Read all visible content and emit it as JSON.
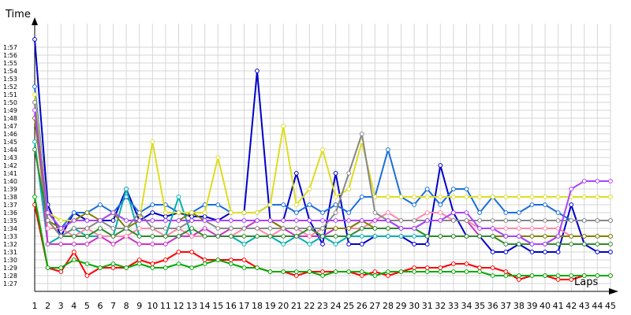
{
  "chart_data": {
    "type": "line",
    "title": "",
    "xlabel": "Laps",
    "ylabel": "Time",
    "x_ticks": [
      "1",
      "2",
      "3",
      "4",
      "5",
      "6",
      "7",
      "8",
      "9",
      "10",
      "11",
      "12",
      "13",
      "14",
      "15",
      "16",
      "17",
      "18",
      "19",
      "20",
      "21",
      "22",
      "23",
      "24",
      "25",
      "26",
      "27",
      "28",
      "29",
      "30",
      "31",
      "32",
      "33",
      "34",
      "35",
      "36",
      "37",
      "38",
      "39",
      "40",
      "41",
      "42",
      "43",
      "44",
      "45"
    ],
    "y_ticks": [
      "1:27",
      "1:28",
      "1:29",
      "1:30",
      "1:31",
      "1:32",
      "1:33",
      "1:34",
      "1:35",
      "1:36",
      "1:37",
      "1:38",
      "1:39",
      "1:40",
      "1:41",
      "1:42",
      "1:43",
      "1:44",
      "1:45",
      "1:46",
      "1:47",
      "1:48",
      "1:49",
      "1:50",
      "1:51",
      "1:52",
      "1:53",
      "1:54",
      "1:55",
      "1:56",
      "1:57"
    ],
    "xlim": [
      1,
      45
    ],
    "ylim_seconds": [
      86,
      120
    ],
    "grid": true,
    "legend": "none",
    "series": [
      {
        "color": "#ff0000",
        "values": [
          97,
          89,
          88.5,
          91,
          88,
          89,
          89,
          89,
          90,
          89.5,
          90,
          91,
          91,
          90,
          90,
          90,
          90,
          89,
          88.5,
          88.5,
          88,
          88.5,
          88.5,
          88.5,
          88.5,
          88,
          88.5,
          88,
          88.5,
          89,
          89,
          89,
          89.5,
          89.5,
          89,
          89,
          88.5,
          87.5,
          88,
          88,
          87.5,
          87.5,
          88,
          88,
          88
        ]
      },
      {
        "color": "#00aa00",
        "values": [
          98,
          89,
          89,
          90,
          89.5,
          89,
          89.5,
          89,
          89.5,
          89,
          89,
          89.5,
          89,
          89.5,
          90,
          89.5,
          89,
          89,
          88.5,
          88.5,
          88.5,
          88.5,
          88,
          88.5,
          88.5,
          88.5,
          88,
          88.5,
          88.5,
          88.5,
          88.5,
          88.5,
          88.5,
          88.5,
          88.5,
          88,
          88,
          88,
          88,
          88,
          88,
          88,
          88,
          88,
          88
        ]
      },
      {
        "color": "#0000cc",
        "values": [
          118,
          97,
          93,
          96,
          95,
          95,
          95,
          99,
          95,
          96,
          95.5,
          96,
          95.5,
          95.5,
          95,
          96,
          96,
          114,
          95,
          95,
          101,
          95,
          92,
          101,
          92,
          92,
          93,
          93,
          93,
          92,
          92,
          102,
          96,
          93,
          93,
          91,
          91,
          92,
          91,
          91,
          91,
          97,
          92,
          91,
          91
        ]
      },
      {
        "color": "#1a6fdc",
        "values": [
          112,
          96,
          94,
          96,
          96,
          97,
          96,
          98,
          96,
          97,
          97,
          96,
          96,
          97,
          97,
          96,
          96,
          96,
          97,
          97,
          96,
          97,
          96,
          97,
          96,
          98,
          98,
          104,
          98,
          97,
          99,
          97,
          99,
          99,
          96,
          98,
          96,
          96,
          97,
          97,
          96,
          95,
          95,
          95,
          95
        ]
      },
      {
        "color": "#00b0b0",
        "values": [
          105,
          92,
          93,
          94,
          93,
          93,
          93,
          99,
          93,
          93,
          93,
          98,
          93,
          93,
          93,
          93,
          92,
          93,
          93,
          92,
          93,
          92,
          93,
          92,
          93,
          93,
          93,
          93,
          93,
          93,
          93,
          93,
          93,
          93,
          93,
          93,
          93,
          93,
          93,
          93,
          93,
          93,
          93,
          93,
          93
        ]
      },
      {
        "color": "#cc33cc",
        "values": [
          110,
          92,
          92,
          92,
          92,
          93,
          92,
          93,
          92,
          92,
          92,
          93,
          93,
          94,
          93,
          94,
          94,
          95,
          95,
          94,
          93,
          93,
          93,
          94,
          94,
          95,
          95,
          95,
          94,
          94,
          95,
          95,
          95,
          95,
          93,
          93,
          93,
          93,
          92,
          92,
          93,
          93,
          93,
          93,
          93
        ]
      },
      {
        "color": "#ff88aa",
        "values": [
          108,
          94,
          94,
          93,
          94,
          93,
          93,
          93,
          94,
          94,
          93,
          94,
          93,
          93,
          93,
          93,
          94,
          94,
          93,
          94,
          94,
          93,
          94,
          94,
          94,
          94,
          95,
          96,
          95,
          95,
          96,
          96,
          95,
          95,
          94,
          94,
          94,
          94,
          94,
          94,
          94,
          93,
          93,
          93,
          93
        ]
      },
      {
        "color": "#808000",
        "values": [
          108,
          95,
          94,
          95,
          96,
          95,
          96,
          94,
          95,
          95,
          95,
          95,
          96,
          95,
          95,
          95,
          95,
          95,
          95,
          94,
          94,
          94,
          94,
          94,
          94,
          95,
          94,
          94,
          94,
          94,
          93,
          93,
          93,
          93,
          93,
          93,
          93,
          93,
          93,
          93,
          93,
          93,
          93,
          93,
          93
        ]
      },
      {
        "color": "#2e8b2e",
        "values": [
          104,
          95,
          93,
          93,
          93,
          94,
          93,
          94,
          93,
          93,
          93,
          93,
          94,
          93,
          93,
          93,
          93,
          93,
          93,
          93,
          93,
          94,
          93,
          93,
          93,
          94,
          94,
          94,
          94,
          94,
          93,
          93,
          93,
          93,
          93,
          93,
          92,
          92,
          92,
          92,
          92,
          92,
          92,
          92,
          92
        ]
      },
      {
        "color": "#dddd22",
        "values": [
          111,
          96,
          95,
          95,
          95,
          95,
          96,
          95,
          95,
          105,
          96,
          96,
          96,
          96,
          103,
          96,
          96,
          96,
          97,
          107,
          97,
          99,
          104,
          98,
          99,
          105,
          98,
          98,
          98,
          98,
          98,
          98,
          98,
          98,
          98,
          98,
          98,
          98,
          98,
          98,
          98,
          98,
          98,
          98,
          98
        ]
      },
      {
        "color": "#888888",
        "values": [
          110,
          95,
          93,
          94,
          94,
          95,
          94,
          94,
          96,
          94,
          94,
          94,
          95,
          95,
          94,
          94,
          94,
          94,
          94,
          94,
          94,
          94,
          94,
          96,
          101,
          106,
          96,
          95,
          95,
          95,
          95,
          95,
          95,
          95,
          95,
          95,
          95,
          95,
          95,
          95,
          95,
          95,
          95,
          95,
          95
        ]
      },
      {
        "color": "#aa44ff",
        "values": [
          109,
          96,
          94,
          95,
          95,
          95,
          96,
          95,
          95,
          95,
          95,
          95,
          95,
          95,
          95,
          95,
          95,
          95,
          95,
          95,
          95,
          95,
          95,
          95,
          95,
          95,
          95,
          95,
          94,
          94,
          95,
          95,
          96,
          96,
          94,
          94,
          93,
          93,
          92,
          92,
          93,
          99,
          100,
          100,
          100
        ]
      }
    ]
  }
}
